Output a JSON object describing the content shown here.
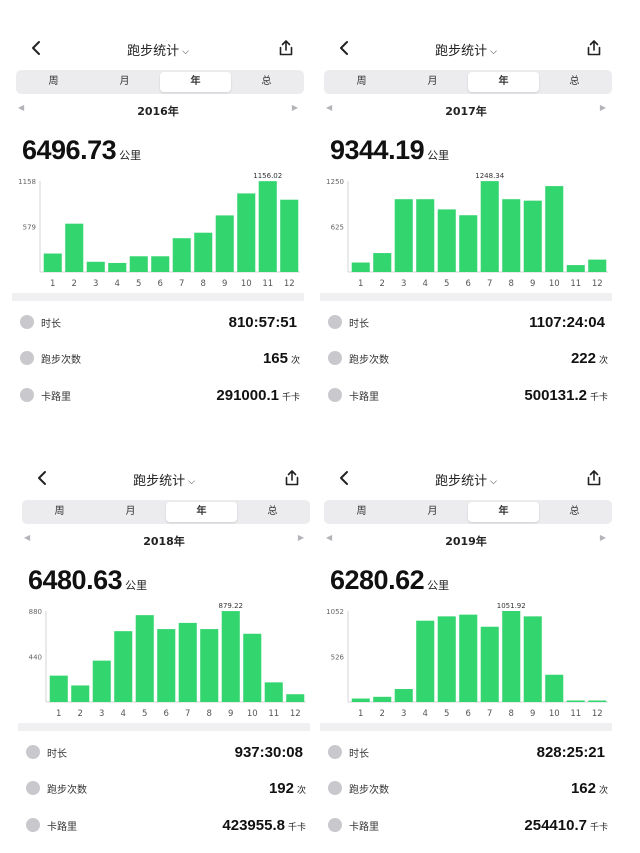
{
  "accent_color": "#33d56f",
  "panels": [
    {
      "title": "跑步统计",
      "tabs": [
        "周",
        "月",
        "年",
        "总"
      ],
      "active_tab": "年",
      "year": "2016年",
      "total": "6496.73",
      "total_unit": "公里",
      "stats": [
        {
          "icon": "clock-icon",
          "label": "时长",
          "value": "810:57:51",
          "unit": ""
        },
        {
          "icon": "run-count-icon",
          "label": "跑步次数",
          "value": "165",
          "unit": "次"
        },
        {
          "icon": "flame-icon",
          "label": "卡路里",
          "value": "291000.1",
          "unit": "千卡"
        }
      ]
    },
    {
      "title": "跑步统计",
      "tabs": [
        "周",
        "月",
        "年",
        "总"
      ],
      "active_tab": "年",
      "year": "2017年",
      "total": "9344.19",
      "total_unit": "公里",
      "stats": [
        {
          "icon": "clock-icon",
          "label": "时长",
          "value": "1107:24:04",
          "unit": ""
        },
        {
          "icon": "run-count-icon",
          "label": "跑步次数",
          "value": "222",
          "unit": "次"
        },
        {
          "icon": "flame-icon",
          "label": "卡路里",
          "value": "500131.2",
          "unit": "千卡"
        }
      ]
    },
    {
      "title": "跑步统计",
      "tabs": [
        "周",
        "月",
        "年",
        "总"
      ],
      "active_tab": "年",
      "year": "2018年",
      "total": "6480.63",
      "total_unit": "公里",
      "stats": [
        {
          "icon": "clock-icon",
          "label": "时长",
          "value": "937:30:08",
          "unit": ""
        },
        {
          "icon": "run-count-icon",
          "label": "跑步次数",
          "value": "192",
          "unit": "次"
        },
        {
          "icon": "flame-icon",
          "label": "卡路里",
          "value": "423955.8",
          "unit": "千卡"
        }
      ]
    },
    {
      "title": "跑步统计",
      "tabs": [
        "周",
        "月",
        "年",
        "总"
      ],
      "active_tab": "年",
      "year": "2019年",
      "total": "6280.62",
      "total_unit": "公里",
      "stats": [
        {
          "icon": "clock-icon",
          "label": "时长",
          "value": "828:25:21",
          "unit": ""
        },
        {
          "icon": "run-count-icon",
          "label": "跑步次数",
          "value": "162",
          "unit": "次"
        },
        {
          "icon": "flame-icon",
          "label": "卡路里",
          "value": "254410.7",
          "unit": "千卡"
        }
      ]
    }
  ],
  "chart_data": [
    {
      "type": "bar",
      "categories": [
        "1",
        "2",
        "3",
        "4",
        "5",
        "6",
        "7",
        "8",
        "9",
        "10",
        "11",
        "12"
      ],
      "values": [
        235,
        615,
        130,
        115,
        200,
        200,
        430,
        500,
        720,
        1000,
        1156.02,
        920
      ],
      "y_ticks": [
        "1158",
        "579"
      ],
      "ylim": [
        0,
        1158
      ],
      "max_label": "1156.02",
      "max_index": 10
    },
    {
      "type": "bar",
      "categories": [
        "1",
        "2",
        "3",
        "4",
        "5",
        "6",
        "7",
        "8",
        "9",
        "10",
        "11",
        "12"
      ],
      "values": [
        130,
        260,
        1000,
        1000,
        860,
        780,
        1248.34,
        1000,
        980,
        1180,
        95,
        170
      ],
      "y_ticks": [
        "1250",
        "625"
      ],
      "ylim": [
        0,
        1250
      ],
      "max_label": "1248.34",
      "max_index": 6
    },
    {
      "type": "bar",
      "categories": [
        "1",
        "2",
        "3",
        "4",
        "5",
        "6",
        "7",
        "8",
        "9",
        "10",
        "11",
        "12"
      ],
      "values": [
        255,
        160,
        400,
        685,
        840,
        705,
        765,
        705,
        879.22,
        660,
        190,
        75
      ],
      "y_ticks": [
        "880",
        "440"
      ],
      "ylim": [
        0,
        880
      ],
      "max_label": "879.22",
      "max_index": 8
    },
    {
      "type": "bar",
      "categories": [
        "1",
        "2",
        "3",
        "4",
        "5",
        "6",
        "7",
        "8",
        "9",
        "10",
        "11",
        "12"
      ],
      "values": [
        40,
        60,
        150,
        940,
        990,
        1010,
        870,
        1051.92,
        990,
        315,
        15,
        15
      ],
      "y_ticks": [
        "1052",
        "526"
      ],
      "ylim": [
        0,
        1052
      ],
      "max_label": "1051.92",
      "max_index": 7
    }
  ]
}
